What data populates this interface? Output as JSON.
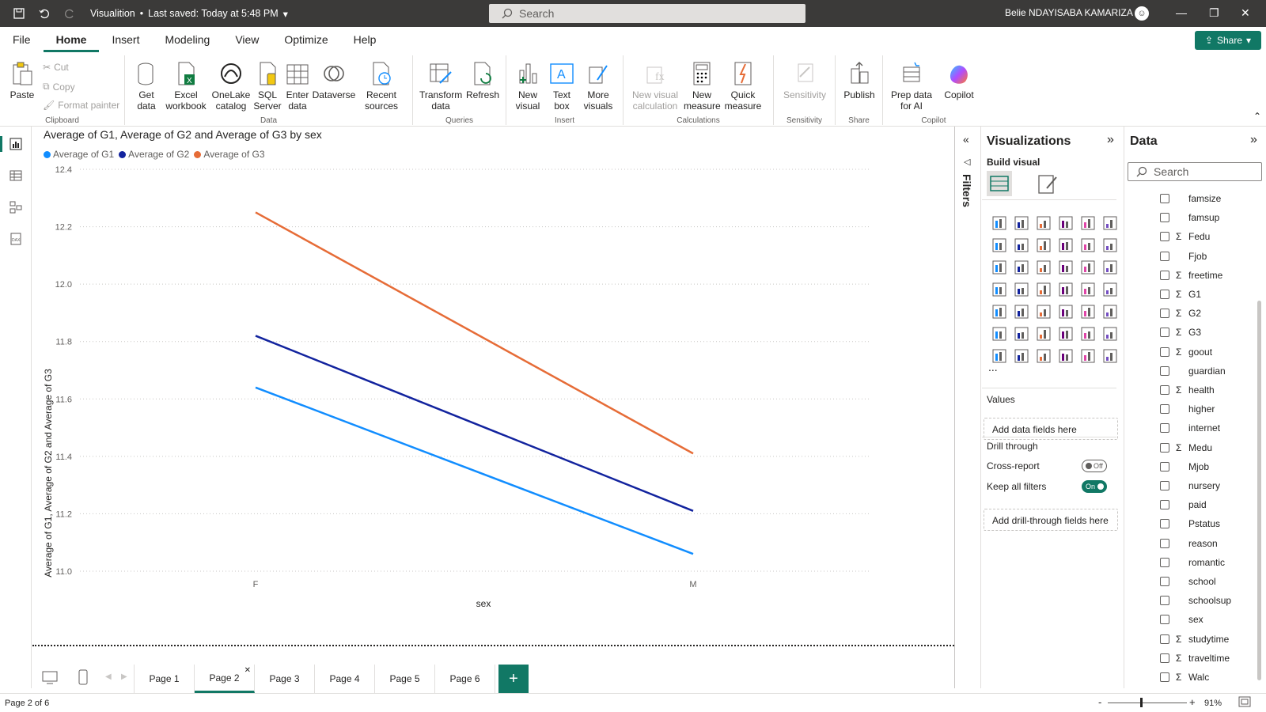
{
  "titlebar": {
    "doc_title": "Visualition",
    "saved": "Last saved: Today at 5:48 PM",
    "search_placeholder": "Search",
    "user": "Belie NDAYISABA KAMARIZA"
  },
  "menu": [
    "File",
    "Home",
    "Insert",
    "Modeling",
    "View",
    "Optimize",
    "Help"
  ],
  "share_label": "Share",
  "ribbon": {
    "clipboard": {
      "paste": "Paste",
      "cut": "Cut",
      "copy": "Copy",
      "format_painter": "Format painter",
      "label": "Clipboard"
    },
    "data": {
      "get_data": "Get data",
      "excel": "Excel workbook",
      "onelake": "OneLake catalog",
      "sql": "SQL Server",
      "enter": "Enter data",
      "dataverse": "Dataverse",
      "recent": "Recent sources",
      "label": "Data"
    },
    "queries": {
      "transform": "Transform data",
      "refresh": "Refresh",
      "label": "Queries"
    },
    "insert": {
      "new_visual": "New visual",
      "text_box": "Text box",
      "more_visuals": "More visuals",
      "label": "Insert"
    },
    "calculations": {
      "new_visual_calc": "New visual calculation",
      "new_measure": "New measure",
      "quick_measure": "Quick measure",
      "label": "Calculations"
    },
    "sensitivity": {
      "sensitivity": "Sensitivity",
      "label": "Sensitivity"
    },
    "share": {
      "publish": "Publish",
      "label": "Share"
    },
    "copilot": {
      "prep": "Prep data for AI",
      "copilot": "Copilot",
      "label": "Copilot"
    }
  },
  "chart_data": {
    "type": "line",
    "title": "Average of G1, Average of G2 and Average of G3 by sex",
    "categories": [
      "F",
      "M"
    ],
    "series": [
      {
        "name": "Average of G1",
        "values": [
          11.64,
          11.06
        ],
        "color": "#118dff"
      },
      {
        "name": "Average of G2",
        "values": [
          11.82,
          11.21
        ],
        "color": "#12239e"
      },
      {
        "name": "Average of G3",
        "values": [
          12.25,
          11.41
        ],
        "color": "#e66c37"
      }
    ],
    "xlabel": "sex",
    "ylabel": "Average of G1, Average of G2 and Average of G3",
    "ylim": [
      11.0,
      12.4
    ],
    "yticks": [
      "11.0",
      "11.2",
      "11.4",
      "11.6",
      "11.8",
      "12.0",
      "12.2",
      "12.4"
    ],
    "grid": true,
    "legend_position": "top-left"
  },
  "filters_label": "Filters",
  "viz_pane": {
    "title": "Visualizations",
    "build_visual": "Build visual",
    "values_label": "Values",
    "add_data_fields": "Add data fields here",
    "drill_through": "Drill through",
    "cross_report": "Cross-report",
    "cross_report_state": "Off",
    "keep_all_filters": "Keep all filters",
    "keep_all_filters_state": "On",
    "add_drill_fields": "Add drill-through fields here",
    "more": "..."
  },
  "data_pane": {
    "title": "Data",
    "search_placeholder": "Search",
    "fields": [
      {
        "name": "famsize",
        "sigma": false
      },
      {
        "name": "famsup",
        "sigma": false
      },
      {
        "name": "Fedu",
        "sigma": true
      },
      {
        "name": "Fjob",
        "sigma": false
      },
      {
        "name": "freetime",
        "sigma": true
      },
      {
        "name": "G1",
        "sigma": true
      },
      {
        "name": "G2",
        "sigma": true
      },
      {
        "name": "G3",
        "sigma": true
      },
      {
        "name": "goout",
        "sigma": true
      },
      {
        "name": "guardian",
        "sigma": false
      },
      {
        "name": "health",
        "sigma": true
      },
      {
        "name": "higher",
        "sigma": false
      },
      {
        "name": "internet",
        "sigma": false
      },
      {
        "name": "Medu",
        "sigma": true
      },
      {
        "name": "Mjob",
        "sigma": false
      },
      {
        "name": "nursery",
        "sigma": false
      },
      {
        "name": "paid",
        "sigma": false
      },
      {
        "name": "Pstatus",
        "sigma": false
      },
      {
        "name": "reason",
        "sigma": false
      },
      {
        "name": "romantic",
        "sigma": false
      },
      {
        "name": "school",
        "sigma": false
      },
      {
        "name": "schoolsup",
        "sigma": false
      },
      {
        "name": "sex",
        "sigma": false
      },
      {
        "name": "studytime",
        "sigma": true
      },
      {
        "name": "traveltime",
        "sigma": true
      },
      {
        "name": "Walc",
        "sigma": true
      }
    ]
  },
  "tabs": [
    "Page 1",
    "Page 2",
    "Page 3",
    "Page 4",
    "Page 5",
    "Page 6"
  ],
  "active_tab": "Page 2",
  "status": {
    "page": "Page 2 of 6",
    "zoom": "91%"
  }
}
